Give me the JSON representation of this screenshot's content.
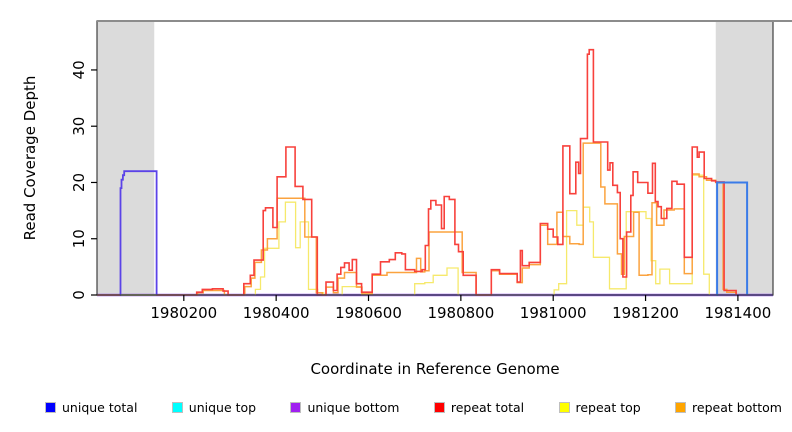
{
  "figure": {
    "title": ""
  },
  "chart_data": {
    "type": "line",
    "subtype": "step-coverage-plot",
    "title": "",
    "xlabel": "Coordinate in Reference Genome",
    "ylabel": "Read Coverage Depth",
    "x_range": [
      1980012,
      1981476
    ],
    "y_range": [
      0,
      48.7
    ],
    "x_ticks": [
      1980200,
      1980400,
      1980600,
      1980800,
      1981000,
      1981200,
      1981400
    ],
    "y_ticks": [
      0,
      10,
      20,
      30,
      40
    ],
    "grid": false,
    "legend_position": "bottom",
    "background_bands": [
      {
        "name": "masked-region-left",
        "x0": 1980012,
        "x1": 1980136,
        "color": "#DBDBDB"
      },
      {
        "name": "masked-region-right",
        "x0": 1981352,
        "x1": 1981476,
        "color": "#DBDBDB"
      }
    ],
    "baseline_marker": {
      "name": "green-baseline-segment",
      "x0": 1980064,
      "x1": 1980140,
      "value": 0,
      "color": "#7CD97C"
    },
    "series": [
      {
        "id": "unique-top",
        "label": "unique top",
        "legend_color": "#00FFFF",
        "segments": [
          {
            "color": "#00E5E5",
            "width": 1.2,
            "points": [
              [
                1980012,
                0
              ],
              [
                1981476,
                0
              ]
            ]
          }
        ]
      },
      {
        "id": "unique-bottom",
        "label": "unique bottom",
        "legend_color": "#A020F0",
        "segments": [
          {
            "color": "#9A5CF0",
            "width": 2.6,
            "points": [
              [
                1980012,
                0
              ],
              [
                1981476,
                0
              ]
            ]
          }
        ]
      },
      {
        "id": "repeat-top",
        "label": "repeat top",
        "legend_color": "#FFFF00",
        "segments": [
          {
            "color": "#F6E96B",
            "width": 1.3,
            "points": [
              [
                1980012,
                0
              ],
              [
                1980355,
                1
              ],
              [
                1980366,
                3.2
              ],
              [
                1980375,
                8.3
              ],
              [
                1980406,
                13
              ],
              [
                1980420,
                16.5
              ],
              [
                1980442,
                8.4
              ],
              [
                1980452,
                13
              ],
              [
                1980470,
                1
              ],
              [
                1980490,
                0.4
              ],
              [
                1980503,
                0
              ],
              [
                1980543,
                1.5
              ],
              [
                1980585,
                0
              ],
              [
                1980700,
                2
              ],
              [
                1980722,
                2.2
              ],
              [
                1980740,
                3.5
              ],
              [
                1980770,
                4.8
              ],
              [
                1980794,
                0
              ],
              [
                1981002,
                0.9
              ],
              [
                1981012,
                2
              ],
              [
                1981029,
                15
              ],
              [
                1981051,
                12.4
              ],
              [
                1981065,
                15.6
              ],
              [
                1981079,
                13
              ],
              [
                1981087,
                6.7
              ],
              [
                1981122,
                1.1
              ],
              [
                1981158,
                14.8
              ],
              [
                1981201,
                13.6
              ],
              [
                1981212,
                6.1
              ],
              [
                1981222,
                2
              ],
              [
                1981231,
                4.6
              ],
              [
                1981252,
                2
              ],
              [
                1981301,
                21.3
              ],
              [
                1981326,
                3.7
              ],
              [
                1981338,
                0
              ]
            ]
          }
        ]
      },
      {
        "id": "repeat-bottom",
        "label": "repeat bottom",
        "legend_color": "#FFA500",
        "segments": [
          {
            "color": "#FBA33F",
            "width": 1.5,
            "points": [
              [
                1980012,
                0
              ],
              [
                1980230,
                0.4
              ],
              [
                1980242,
                0.8
              ],
              [
                1980288,
                0
              ],
              [
                1980332,
                1.5
              ],
              [
                1980346,
                3
              ],
              [
                1980354,
                5.8
              ],
              [
                1980368,
                8
              ],
              [
                1980381,
                10
              ],
              [
                1980402,
                17.2
              ],
              [
                1980462,
                10.3
              ],
              [
                1980487,
                0.4
              ],
              [
                1980500,
                0
              ],
              [
                1980508,
                1.4
              ],
              [
                1980524,
                0.4
              ],
              [
                1980534,
                3
              ],
              [
                1980548,
                4
              ],
              [
                1980574,
                1.4
              ],
              [
                1980586,
                0.2
              ],
              [
                1980608,
                3.5
              ],
              [
                1980640,
                4
              ],
              [
                1980700,
                4
              ],
              [
                1980704,
                6.5
              ],
              [
                1980713,
                4.1
              ],
              [
                1980722,
                4.3
              ],
              [
                1980731,
                11.2
              ],
              [
                1980803,
                4
              ],
              [
                1980833,
                0
              ],
              [
                1980866,
                4.3
              ],
              [
                1980884,
                3.7
              ],
              [
                1980922,
                2.2
              ],
              [
                1980933,
                4.8
              ],
              [
                1980948,
                5.4
              ],
              [
                1980972,
                12.4
              ],
              [
                1980988,
                9
              ],
              [
                1981008,
                14.7
              ],
              [
                1981021,
                10.4
              ],
              [
                1981036,
                9.1
              ],
              [
                1981056,
                9
              ],
              [
                1981065,
                27
              ],
              [
                1981103,
                19.2
              ],
              [
                1981112,
                16.2
              ],
              [
                1981139,
                7.3
              ],
              [
                1981148,
                3.7
              ],
              [
                1981154,
                10.4
              ],
              [
                1981174,
                14.7
              ],
              [
                1981186,
                3.5
              ],
              [
                1981205,
                3.6
              ],
              [
                1981214,
                16.4
              ],
              [
                1981224,
                12.4
              ],
              [
                1981240,
                15.1
              ],
              [
                1981262,
                15.3
              ],
              [
                1981284,
                3.8
              ],
              [
                1981301,
                21.5
              ],
              [
                1981316,
                21
              ],
              [
                1981332,
                20.4
              ],
              [
                1981352,
                20
              ],
              [
                1981368,
                1
              ],
              [
                1981376,
                0.5
              ],
              [
                1981396,
                0
              ]
            ]
          }
        ]
      },
      {
        "id": "repeat-total",
        "label": "repeat total",
        "legend_color": "#FF0000",
        "segments": [
          {
            "color": "#F8413C",
            "width": 1.6,
            "points": [
              [
                1980012,
                0
              ],
              [
                1980228,
                0.5
              ],
              [
                1980240,
                1
              ],
              [
                1980262,
                1.1
              ],
              [
                1980285,
                0.7
              ],
              [
                1980296,
                0
              ],
              [
                1980330,
                2
              ],
              [
                1980344,
                3.5
              ],
              [
                1980352,
                6.2
              ],
              [
                1980372,
                15
              ],
              [
                1980377,
                15.5
              ],
              [
                1980393,
                12
              ],
              [
                1980402,
                21
              ],
              [
                1980421,
                26.3
              ],
              [
                1980441,
                19.3
              ],
              [
                1980458,
                17
              ],
              [
                1980477,
                10.3
              ],
              [
                1980489,
                0
              ],
              [
                1980508,
                2.3
              ],
              [
                1980524,
                0.8
              ],
              [
                1980532,
                3.7
              ],
              [
                1980540,
                4.9
              ],
              [
                1980548,
                5.7
              ],
              [
                1980558,
                4.4
              ],
              [
                1980565,
                6.3
              ],
              [
                1980574,
                2
              ],
              [
                1980585,
                0.5
              ],
              [
                1980608,
                3.7
              ],
              [
                1980626,
                5.9
              ],
              [
                1980645,
                6.3
              ],
              [
                1980658,
                7.5
              ],
              [
                1980672,
                7.3
              ],
              [
                1980680,
                4.5
              ],
              [
                1980700,
                4.2
              ],
              [
                1980716,
                4.5
              ],
              [
                1980723,
                8.8
              ],
              [
                1980730,
                15.3
              ],
              [
                1980735,
                16.8
              ],
              [
                1980746,
                16
              ],
              [
                1980758,
                11.8
              ],
              [
                1980764,
                17.5
              ],
              [
                1980775,
                17
              ],
              [
                1980787,
                9
              ],
              [
                1980795,
                7.7
              ],
              [
                1980805,
                3.5
              ],
              [
                1980833,
                0
              ],
              [
                1980866,
                4.5
              ],
              [
                1980884,
                3.8
              ],
              [
                1980922,
                2.3
              ],
              [
                1980929,
                7.9
              ],
              [
                1980933,
                5.2
              ],
              [
                1980948,
                5.8
              ],
              [
                1980972,
                12.7
              ],
              [
                1980988,
                11.7
              ],
              [
                1981000,
                10.3
              ],
              [
                1981010,
                9
              ],
              [
                1981021,
                26.5
              ],
              [
                1981036,
                18
              ],
              [
                1981049,
                23.6
              ],
              [
                1981055,
                21.6
              ],
              [
                1981059,
                27.8
              ],
              [
                1981074,
                42.8
              ],
              [
                1981078,
                43.6
              ],
              [
                1981087,
                27.2
              ],
              [
                1981118,
                22.2
              ],
              [
                1981123,
                23.5
              ],
              [
                1981129,
                19.5
              ],
              [
                1981139,
                18.2
              ],
              [
                1981145,
                10
              ],
              [
                1981151,
                3.2
              ],
              [
                1981159,
                11.2
              ],
              [
                1981168,
                17.7
              ],
              [
                1981173,
                21.9
              ],
              [
                1981183,
                20
              ],
              [
                1981205,
                18.1
              ],
              [
                1981215,
                23.4
              ],
              [
                1981221,
                16.6
              ],
              [
                1981227,
                15.7
              ],
              [
                1981234,
                13.6
              ],
              [
                1981246,
                15.4
              ],
              [
                1981257,
                20.2
              ],
              [
                1981268,
                19.7
              ],
              [
                1981284,
                6.7
              ],
              [
                1981301,
                26.3
              ],
              [
                1981312,
                24.5
              ],
              [
                1981316,
                25.4
              ],
              [
                1981327,
                20.7
              ],
              [
                1981343,
                20.3
              ],
              [
                1981352,
                20.1
              ],
              [
                1981370,
                0.8
              ],
              [
                1981396,
                0
              ]
            ]
          }
        ]
      },
      {
        "id": "unique-total",
        "label": "unique total",
        "legend_color": "#0000FF",
        "segments": [
          {
            "color": "#4646E2",
            "width": 1.3,
            "points": [
              [
                1980012,
                0
              ],
              [
                1981476,
                0
              ]
            ]
          },
          {
            "color": "#5B43E8",
            "width": 1.8,
            "points": [
              [
                1980062,
                0
              ],
              [
                1980063,
                19
              ],
              [
                1980065,
                20.5
              ],
              [
                1980068,
                21.3
              ],
              [
                1980071,
                22
              ],
              [
                1980140,
                22
              ],
              [
                1980141,
                0
              ]
            ]
          },
          {
            "color": "#3A7BE8",
            "width": 2.0,
            "points": [
              [
                1981354,
                0
              ],
              [
                1981355,
                20
              ],
              [
                1981419,
                20
              ],
              [
                1981420,
                0
              ]
            ]
          }
        ]
      }
    ]
  },
  "legend": {
    "items": [
      {
        "label": "unique total",
        "color": "#0000FF"
      },
      {
        "label": "unique top",
        "color": "#00FFFF"
      },
      {
        "label": "unique bottom",
        "color": "#A020F0"
      },
      {
        "label": "repeat total",
        "color": "#FF0000"
      },
      {
        "label": "repeat top",
        "color": "#FFFF00"
      },
      {
        "label": "repeat bottom",
        "color": "#FFA500"
      }
    ]
  }
}
